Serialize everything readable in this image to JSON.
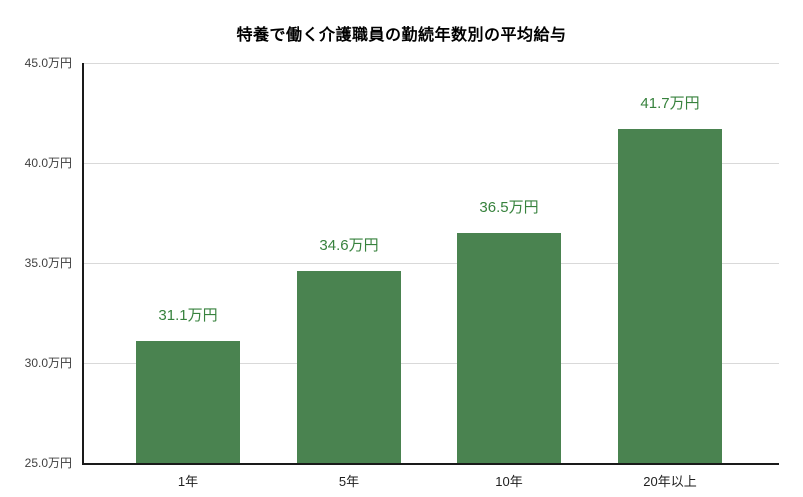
{
  "title": "特養で働く介護職員の勤続年数別の平均給与",
  "colors": {
    "background": "#ffffff",
    "bar": "#4a8350",
    "value_label": "#37823d",
    "grid": "#d9d9d9",
    "axis": "#1a1a1a",
    "title": "#000000",
    "y_tick_label": "#404040",
    "x_tick_label": "#1f1f1f"
  },
  "chart_data": {
    "type": "bar",
    "title": "特養で働く介護職員の勤続年数別の平均給与",
    "categories": [
      "1年",
      "5年",
      "10年",
      "20年以上"
    ],
    "values": [
      31.1,
      34.6,
      36.5,
      41.7
    ],
    "value_labels": [
      "31.1万円",
      "34.6万円",
      "36.5万円",
      "41.7万円"
    ],
    "unit": "万円",
    "xlabel": "",
    "ylabel": "",
    "ylim": [
      25,
      45
    ],
    "ytick_step": 5,
    "ytick_labels": [
      "25.0万円",
      "30.0万円",
      "35.0万円",
      "40.0万円",
      "45.0万円"
    ],
    "grid": "horizontal-major",
    "legend": "none"
  }
}
